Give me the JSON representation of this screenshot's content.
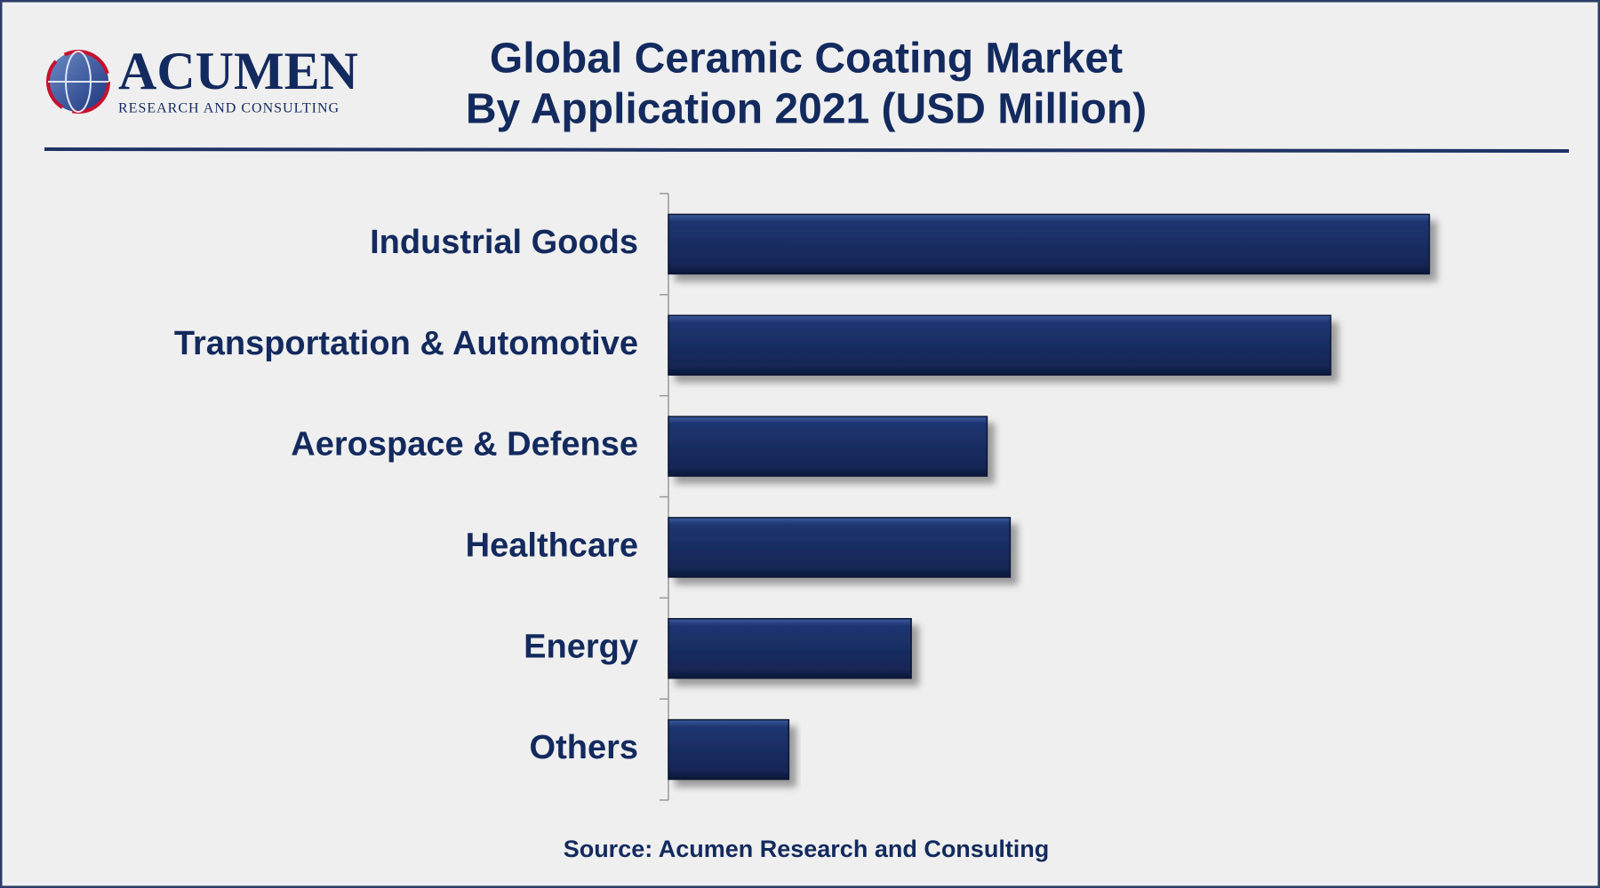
{
  "logo": {
    "name": "ACUMEN",
    "tagline": "RESEARCH AND CONSULTING"
  },
  "chart_data": {
    "type": "bar",
    "orientation": "horizontal",
    "title": "Global Ceramic Coating Market",
    "subtitle": "By Application 2021 (USD Million)",
    "categories": [
      "Industrial Goods",
      "Transportation & Automotive",
      "Aerospace & Defense",
      "Healthcare",
      "Energy",
      "Others"
    ],
    "values": [
      3200,
      2785,
      1340,
      1437,
      1021,
      506
    ],
    "color": "#1a2f66",
    "source": "Source: Acumen Research and Consulting"
  }
}
